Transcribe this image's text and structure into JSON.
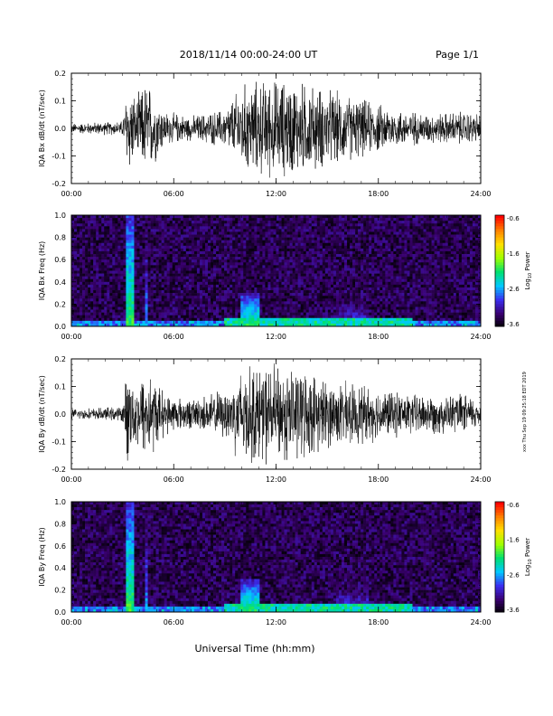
{
  "header": {
    "date_range": "2018/11/14   00:00-24:00 UT",
    "page": "Page 1/1"
  },
  "side_note": "xxx Thu Sep 19 09:25:18 EDT 2019",
  "xlabel": "Universal Time (hh:mm)",
  "x_ticks": [
    "00:00",
    "06:00",
    "12:00",
    "18:00",
    "24:00"
  ],
  "colorbar": {
    "label_prefix": "Log",
    "label_sub": "10",
    "label_suffix": " Power",
    "ticks": [
      "-0.6",
      "-1.6",
      "-2.6",
      "-3.6"
    ],
    "range": [
      -3.6,
      -0.6
    ],
    "colormap": [
      "#000000",
      "#3a0070",
      "#3b2ef0",
      "#00c8ff",
      "#00e070",
      "#a0ff00",
      "#ffe000",
      "#ff8000",
      "#ff0000"
    ]
  },
  "chart_data": [
    {
      "type": "line",
      "title": "",
      "ylabel": "IQA Bx dB/dt (nT/sec)",
      "xlabel": "",
      "xlim": [
        "00:00",
        "24:00"
      ],
      "ylim": [
        -0.2,
        0.2
      ],
      "y_ticks": [
        "0.2",
        "0.1",
        "0.0",
        "-0.1",
        "-0.2"
      ],
      "series": [
        {
          "values_description_hours": [
            0,
            24
          ],
          "envelope": [
            {
              "t": 0.0,
              "amp": 0.02
            },
            {
              "t": 3.0,
              "amp": 0.03
            },
            {
              "t": 3.3,
              "amp": 0.2
            },
            {
              "t": 3.8,
              "amp": 0.12
            },
            {
              "t": 4.4,
              "amp": 0.2
            },
            {
              "t": 5.5,
              "amp": 0.07
            },
            {
              "t": 7.0,
              "amp": 0.05
            },
            {
              "t": 9.0,
              "amp": 0.08
            },
            {
              "t": 10.0,
              "amp": 0.18
            },
            {
              "t": 11.5,
              "amp": 0.2
            },
            {
              "t": 13.0,
              "amp": 0.2
            },
            {
              "t": 15.0,
              "amp": 0.16
            },
            {
              "t": 17.0,
              "amp": 0.12
            },
            {
              "t": 19.0,
              "amp": 0.08
            },
            {
              "t": 21.0,
              "amp": 0.06
            },
            {
              "t": 23.0,
              "amp": 0.07
            },
            {
              "t": 24.0,
              "amp": 0.06
            }
          ]
        }
      ]
    },
    {
      "type": "heatmap",
      "title": "",
      "ylabel": "IQA Bx Freq (Hz)",
      "xlim": [
        "00:00",
        "24:00"
      ],
      "ylim": [
        0.0,
        1.0
      ],
      "y_ticks": [
        "1.0",
        "0.8",
        "0.6",
        "0.4",
        "0.2",
        "0.0"
      ],
      "features": [
        {
          "t_start": 3.2,
          "t_end": 3.6,
          "f_max": 1.0,
          "level": -1.8
        },
        {
          "t_start": 4.3,
          "t_end": 4.5,
          "f_max": 1.0,
          "level": -2.4
        },
        {
          "t_start": 10.0,
          "t_end": 11.0,
          "f_max": 0.3,
          "level": -1.9
        },
        {
          "t_start": 15.5,
          "t_end": 17.5,
          "f_max": 0.35,
          "level": -2.6
        }
      ]
    },
    {
      "type": "line",
      "title": "",
      "ylabel": "IQA By dB/dt (nT/sec)",
      "xlabel": "",
      "xlim": [
        "00:00",
        "24:00"
      ],
      "ylim": [
        -0.2,
        0.2
      ],
      "y_ticks": [
        "0.2",
        "0.1",
        "0.0",
        "-0.1",
        "-0.2"
      ],
      "series": [
        {
          "envelope": [
            {
              "t": 0.0,
              "amp": 0.02
            },
            {
              "t": 3.0,
              "amp": 0.03
            },
            {
              "t": 3.3,
              "amp": 0.2
            },
            {
              "t": 3.8,
              "amp": 0.12
            },
            {
              "t": 4.4,
              "amp": 0.2
            },
            {
              "t": 5.5,
              "amp": 0.08
            },
            {
              "t": 7.0,
              "amp": 0.06
            },
            {
              "t": 9.0,
              "amp": 0.1
            },
            {
              "t": 10.0,
              "amp": 0.2
            },
            {
              "t": 11.5,
              "amp": 0.2
            },
            {
              "t": 13.0,
              "amp": 0.2
            },
            {
              "t": 15.0,
              "amp": 0.14
            },
            {
              "t": 17.0,
              "amp": 0.12
            },
            {
              "t": 19.0,
              "amp": 0.09
            },
            {
              "t": 21.0,
              "amp": 0.08
            },
            {
              "t": 23.0,
              "amp": 0.08
            },
            {
              "t": 24.0,
              "amp": 0.06
            }
          ]
        }
      ]
    },
    {
      "type": "heatmap",
      "title": "",
      "ylabel": "IQA By Freq (Hz)",
      "xlim": [
        "00:00",
        "24:00"
      ],
      "ylim": [
        0.0,
        1.0
      ],
      "y_ticks": [
        "1.0",
        "0.8",
        "0.6",
        "0.4",
        "0.2",
        "0.0"
      ],
      "features": [
        {
          "t_start": 3.2,
          "t_end": 3.6,
          "f_max": 1.0,
          "level": -1.8
        },
        {
          "t_start": 4.3,
          "t_end": 4.5,
          "f_max": 1.0,
          "level": -2.4
        },
        {
          "t_start": 10.0,
          "t_end": 11.0,
          "f_max": 0.3,
          "level": -1.9
        },
        {
          "t_start": 15.5,
          "t_end": 17.5,
          "f_max": 0.35,
          "level": -2.6
        }
      ]
    }
  ]
}
